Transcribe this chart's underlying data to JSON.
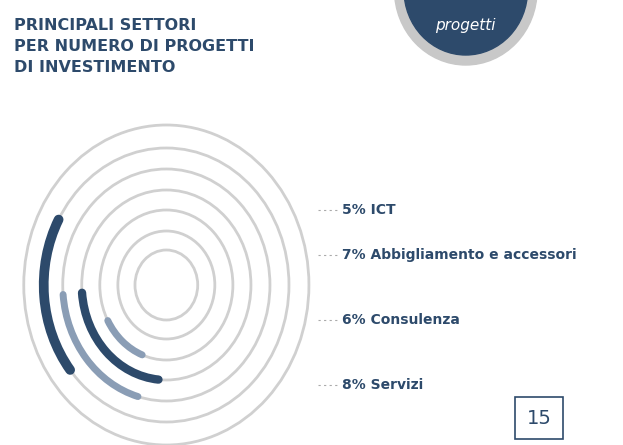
{
  "title_line1": "PRINCIPALI SETTORI",
  "title_line2": "PER NUMERO DI PROGETTI",
  "title_line3": "DI INVESTIMENTO",
  "title_color": "#2d4a6b",
  "title_fontsize": 11.5,
  "background_color": "#ffffff",
  "labels": [
    "5% ICT",
    "7% Abbigliamento e accessori",
    "6% Consulenza",
    "8% Servizi"
  ],
  "label_color": "#2d4a6b",
  "label_fontsize": 10,
  "ring_color": "#d0d0d0",
  "arc_color_dark": "#2d4a6b",
  "arc_color_mid": "#8a9db5",
  "page_number": "15",
  "badge_color": "#2d4a6b",
  "badge_ring_color": "#c8c8c8",
  "badge_text": "progetti",
  "badge_text_color": "#ffffff"
}
